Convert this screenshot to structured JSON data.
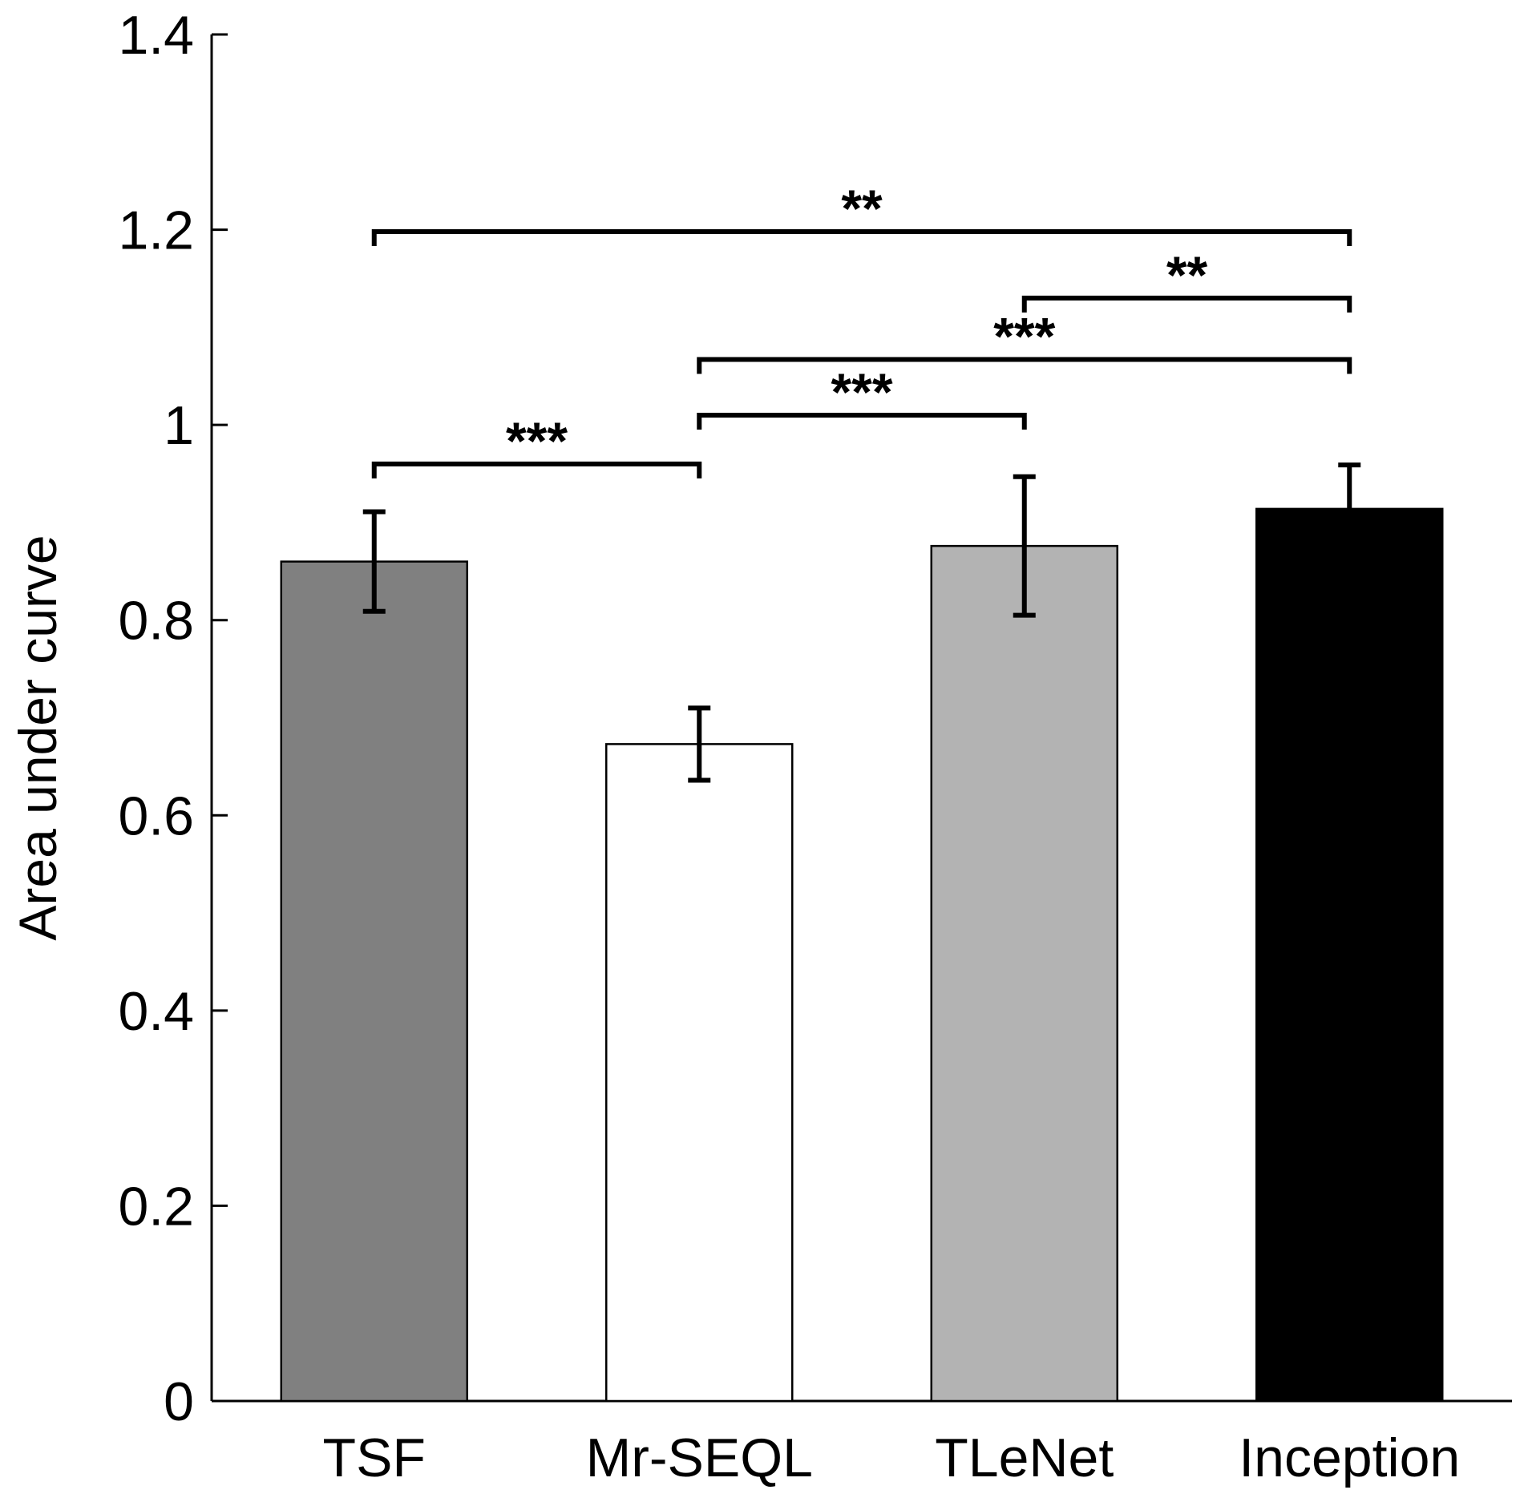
{
  "chart_data": {
    "type": "bar",
    "title": "",
    "xlabel": "",
    "ylabel": "Area under curve",
    "ylim": [
      0,
      1.4
    ],
    "yticks": [
      0,
      0.2,
      0.4,
      0.6,
      0.8,
      1,
      1.2,
      1.4
    ],
    "ytick_labels": [
      "0",
      "0.2",
      "0.4",
      "0.6",
      "0.8",
      "1",
      "1.2",
      "1.4"
    ],
    "grid": false,
    "categories": [
      "TSF",
      "Mr-SEQL",
      "TLeNet",
      "Inception"
    ],
    "values": [
      0.86,
      0.673,
      0.876,
      0.914
    ],
    "error": [
      0.051,
      0.037,
      0.071,
      0.045
    ],
    "colors": [
      "#808080",
      "#ffffff",
      "#b3b3b3",
      "#000000"
    ],
    "significance": [
      {
        "from": 0,
        "to": 1,
        "level": 0.96,
        "label": "***"
      },
      {
        "from": 1,
        "to": 2,
        "level": 1.01,
        "label": "***"
      },
      {
        "from": 1,
        "to": 3,
        "level": 1.067,
        "label": "***"
      },
      {
        "from": 2,
        "to": 3,
        "level": 1.13,
        "label": "**"
      },
      {
        "from": 0,
        "to": 3,
        "level": 1.198,
        "label": "**"
      }
    ]
  }
}
